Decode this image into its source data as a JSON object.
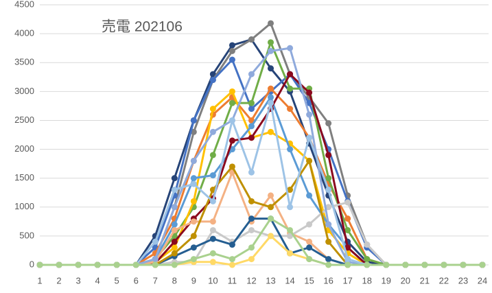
{
  "chart_data": {
    "type": "line",
    "title": "売電 202106",
    "categories": [
      1,
      2,
      3,
      4,
      5,
      6,
      7,
      8,
      9,
      10,
      11,
      12,
      13,
      14,
      15,
      16,
      17,
      18,
      19,
      20,
      21,
      22,
      23,
      24
    ],
    "ylim": [
      0,
      4500
    ],
    "yticks": [
      0,
      500,
      1000,
      1500,
      2000,
      2500,
      3000,
      3500,
      4000,
      4500
    ],
    "grid": true,
    "series": [
      {
        "color": "#264478",
        "values": [
          0,
          0,
          0,
          0,
          0,
          0,
          500,
          1500,
          2500,
          3300,
          3800,
          3900,
          3400,
          3000,
          2100,
          1200,
          400,
          50,
          0,
          0,
          0,
          0,
          0,
          0
        ]
      },
      {
        "color": "#7f7f7f",
        "values": [
          0,
          0,
          0,
          0,
          0,
          0,
          100,
          1000,
          2300,
          3200,
          3700,
          3900,
          4180,
          3300,
          2900,
          2450,
          1200,
          350,
          0,
          0,
          0,
          0,
          0,
          0
        ]
      },
      {
        "color": "#4472c4",
        "values": [
          0,
          0,
          0,
          0,
          0,
          0,
          300,
          1200,
          2500,
          3200,
          3550,
          2700,
          3000,
          3300,
          2800,
          2000,
          1100,
          300,
          0,
          0,
          0,
          0,
          0,
          0
        ]
      },
      {
        "color": "#ed7d31",
        "values": [
          0,
          0,
          0,
          0,
          0,
          0,
          200,
          800,
          1800,
          2600,
          2900,
          2500,
          3050,
          2700,
          2200,
          1400,
          800,
          100,
          0,
          0,
          0,
          0,
          0,
          0
        ]
      },
      {
        "color": "#70ad47",
        "values": [
          0,
          0,
          0,
          0,
          0,
          0,
          100,
          500,
          1000,
          1900,
          2800,
          2800,
          3850,
          3050,
          3050,
          1500,
          600,
          100,
          0,
          0,
          0,
          0,
          0,
          0
        ]
      },
      {
        "color": "#ffc000",
        "values": [
          0,
          0,
          0,
          0,
          0,
          0,
          50,
          300,
          1100,
          2700,
          3000,
          2200,
          2300,
          2100,
          1800,
          600,
          200,
          0,
          0,
          0,
          0,
          0,
          0,
          0
        ]
      },
      {
        "color": "#5b9bd5",
        "values": [
          0,
          0,
          0,
          0,
          0,
          0,
          100,
          700,
          1500,
          1550,
          2000,
          2400,
          2900,
          2000,
          1200,
          700,
          300,
          0,
          0,
          0,
          0,
          0,
          0,
          0
        ]
      },
      {
        "color": "#8b0a1e",
        "values": [
          0,
          0,
          0,
          0,
          0,
          0,
          30,
          400,
          800,
          1150,
          2150,
          2200,
          2700,
          3300,
          2980,
          1900,
          300,
          0,
          0,
          0,
          0,
          0,
          0,
          0
        ]
      },
      {
        "color": "#f4b183",
        "values": [
          0,
          0,
          0,
          0,
          0,
          0,
          50,
          600,
          750,
          750,
          1600,
          750,
          1200,
          550,
          400,
          100,
          0,
          0,
          0,
          0,
          0,
          0,
          0,
          0
        ]
      },
      {
        "color": "#c9c9c9",
        "values": [
          0,
          0,
          0,
          0,
          0,
          0,
          0,
          50,
          50,
          600,
          400,
          600,
          500,
          500,
          700,
          1000,
          1080,
          350,
          0,
          0,
          0,
          0,
          0,
          0
        ]
      },
      {
        "color": "#255e91",
        "values": [
          0,
          0,
          0,
          0,
          0,
          0,
          0,
          150,
          300,
          450,
          350,
          800,
          800,
          200,
          300,
          100,
          0,
          0,
          0,
          0,
          0,
          0,
          0,
          0
        ]
      },
      {
        "color": "#bf9000",
        "values": [
          0,
          0,
          0,
          0,
          0,
          0,
          0,
          200,
          500,
          1300,
          1700,
          1100,
          1000,
          1300,
          1800,
          400,
          0,
          0,
          0,
          0,
          0,
          0,
          0,
          0
        ]
      },
      {
        "color": "#8faadc",
        "values": [
          0,
          0,
          0,
          0,
          0,
          0,
          100,
          1000,
          1800,
          2300,
          2500,
          3300,
          3700,
          3750,
          2600,
          700,
          50,
          0,
          0,
          0,
          0,
          0,
          0,
          0
        ]
      },
      {
        "color": "#ffd966",
        "values": [
          0,
          0,
          0,
          0,
          0,
          0,
          0,
          0,
          50,
          50,
          0,
          100,
          500,
          200,
          100,
          0,
          0,
          0,
          0,
          0,
          0,
          0,
          0,
          0
        ]
      },
      {
        "color": "#9dc3e6",
        "values": [
          0,
          0,
          0,
          0,
          0,
          0,
          400,
          1300,
          1400,
          1100,
          2500,
          1600,
          2800,
          1000,
          2200,
          1300,
          100,
          0,
          0,
          0,
          0,
          0,
          0,
          0
        ]
      },
      {
        "color": "#a9d18e",
        "values": [
          0,
          0,
          0,
          0,
          0,
          0,
          0,
          0,
          100,
          200,
          100,
          300,
          800,
          600,
          100,
          0,
          0,
          0,
          0,
          0,
          0,
          0,
          0,
          0
        ]
      }
    ]
  }
}
